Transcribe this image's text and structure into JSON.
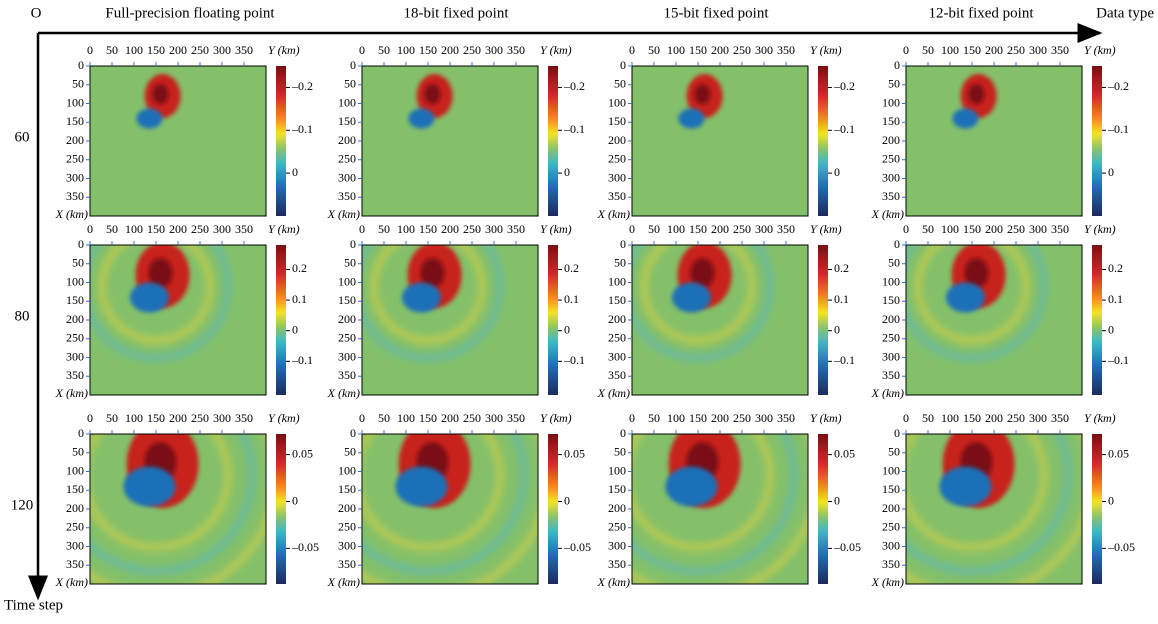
{
  "origin_label": "O",
  "x_axis_label": "Data type",
  "y_axis_label": "Time step",
  "columns": [
    "Full-precision floating point",
    "18-bit fixed point",
    "15-bit fixed point",
    "12-bit fixed point"
  ],
  "panel": {
    "x_unit_label": "Y (km)",
    "y_unit_label": "X (km)",
    "xlim": [
      0,
      400
    ],
    "ylim": [
      0,
      400
    ],
    "xticks": [
      0,
      50,
      100,
      150,
      200,
      250,
      300,
      350
    ],
    "yticks": [
      0,
      50,
      100,
      150,
      200,
      250,
      300,
      350
    ]
  },
  "rows": [
    {
      "label": "60",
      "colorbar_lim": [
        0.1,
        -0.25
      ],
      "colorbar_ticks": [
        {
          "value": -0.2,
          "label": "–0.2"
        },
        {
          "value": -0.1,
          "label": "–0.1"
        },
        0
      ]
    },
    {
      "label": "80",
      "colorbar_lim": [
        -0.21,
        0.28
      ],
      "colorbar_ticks": [
        0.2,
        0.1,
        0,
        {
          "value": -0.1,
          "label": "–0.1"
        }
      ]
    },
    {
      "label": "120",
      "colorbar_lim": [
        -0.088,
        0.072
      ],
      "colorbar_ticks": [
        0.05,
        0,
        {
          "value": -0.05,
          "label": "–0.05"
        }
      ]
    }
  ]
}
